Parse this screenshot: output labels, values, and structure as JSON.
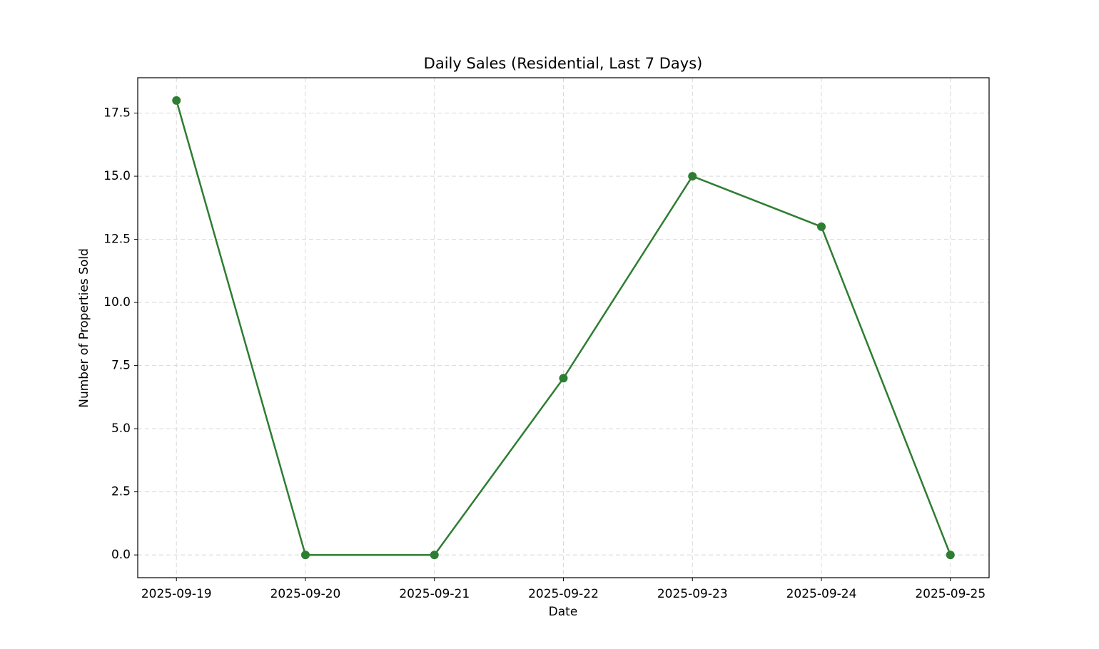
{
  "chart_data": {
    "type": "line",
    "title": "Daily Sales (Residential, Last 7 Days)",
    "x_label": "Date",
    "y_label": "Number of Properties Sold",
    "categories": [
      "2025-09-19",
      "2025-09-20",
      "2025-09-21",
      "2025-09-22",
      "2025-09-23",
      "2025-09-24",
      "2025-09-25"
    ],
    "series": [
      {
        "name": "Residential",
        "color": "#2e7d32",
        "values": [
          18,
          0,
          0,
          7,
          15,
          13,
          0
        ]
      }
    ],
    "ylim": [
      -0.9,
      18.9
    ],
    "yticks": [
      {
        "value": 0,
        "label": "0.0"
      },
      {
        "value": 2.5,
        "label": "2.5"
      },
      {
        "value": 5,
        "label": "5.0"
      },
      {
        "value": 7.5,
        "label": "7.5"
      },
      {
        "value": 10,
        "label": "10.0"
      },
      {
        "value": 12.5,
        "label": "12.5"
      },
      {
        "value": 15,
        "label": "15.0"
      },
      {
        "value": 17.5,
        "label": "17.5"
      }
    ],
    "grid": true
  }
}
